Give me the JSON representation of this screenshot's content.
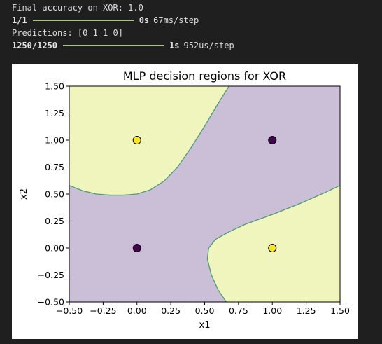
{
  "console": {
    "accuracy_line": "Final accuracy on XOR: 1.0",
    "progress1": {
      "count": "1/1",
      "time": "0s",
      "rate": "67ms/step",
      "fraction": 1.0
    },
    "predictions_line": "Predictions: [0 1 1 0]",
    "progress2": {
      "count": "1250/1250",
      "time": "1s",
      "rate": "952us/step",
      "fraction": 1.0
    }
  },
  "colors": {
    "terminal_bg": "#1f1f1f",
    "progress_bar": "#a8c08a",
    "region_class0": "#cbbfd8",
    "region_class1": "#eff5bd",
    "boundary": "#4f9a7a",
    "point_class0": "#440154",
    "point_class1": "#fde725"
  },
  "chart_data": {
    "type": "scatter",
    "title": "MLP decision regions for XOR",
    "xlabel": "x1",
    "ylabel": "x2",
    "xlim": [
      -0.5,
      1.5
    ],
    "ylim": [
      -0.5,
      1.5
    ],
    "xticks": [
      "-0.50",
      "-0.25",
      "0.00",
      "0.25",
      "0.50",
      "0.75",
      "1.00",
      "1.25",
      "1.50"
    ],
    "yticks": [
      "-0.50",
      "-0.25",
      "0.00",
      "0.25",
      "0.50",
      "0.75",
      "1.00",
      "1.25",
      "1.50"
    ],
    "xtick_values": [
      -0.5,
      -0.25,
      0,
      0.25,
      0.5,
      0.75,
      1.0,
      1.25,
      1.5
    ],
    "ytick_values": [
      -0.5,
      -0.25,
      0,
      0.25,
      0.5,
      0.75,
      1.0,
      1.25,
      1.5
    ],
    "grid": false,
    "points": [
      {
        "x": 0,
        "y": 0,
        "label": 0
      },
      {
        "x": 0,
        "y": 1,
        "label": 1
      },
      {
        "x": 1,
        "y": 0,
        "label": 1
      },
      {
        "x": 1,
        "y": 1,
        "label": 0
      }
    ],
    "regions": [
      {
        "class": 1,
        "boundary": [
          [
            -0.5,
            0.58
          ],
          [
            -0.4,
            0.53
          ],
          [
            -0.3,
            0.5
          ],
          [
            -0.2,
            0.49
          ],
          [
            -0.1,
            0.49
          ],
          [
            0.0,
            0.5
          ],
          [
            0.1,
            0.54
          ],
          [
            0.2,
            0.62
          ],
          [
            0.3,
            0.75
          ],
          [
            0.4,
            0.93
          ],
          [
            0.5,
            1.13
          ],
          [
            0.6,
            1.34
          ],
          [
            0.68,
            1.5
          ]
        ]
      },
      {
        "class": 1,
        "boundary": [
          [
            0.66,
            -0.5
          ],
          [
            0.6,
            -0.39
          ],
          [
            0.55,
            -0.25
          ],
          [
            0.52,
            -0.1
          ],
          [
            0.53,
            0.0
          ],
          [
            0.58,
            0.08
          ],
          [
            0.68,
            0.15
          ],
          [
            0.8,
            0.22
          ],
          [
            1.0,
            0.31
          ],
          [
            1.2,
            0.41
          ],
          [
            1.4,
            0.52
          ],
          [
            1.5,
            0.58
          ]
        ]
      }
    ]
  }
}
